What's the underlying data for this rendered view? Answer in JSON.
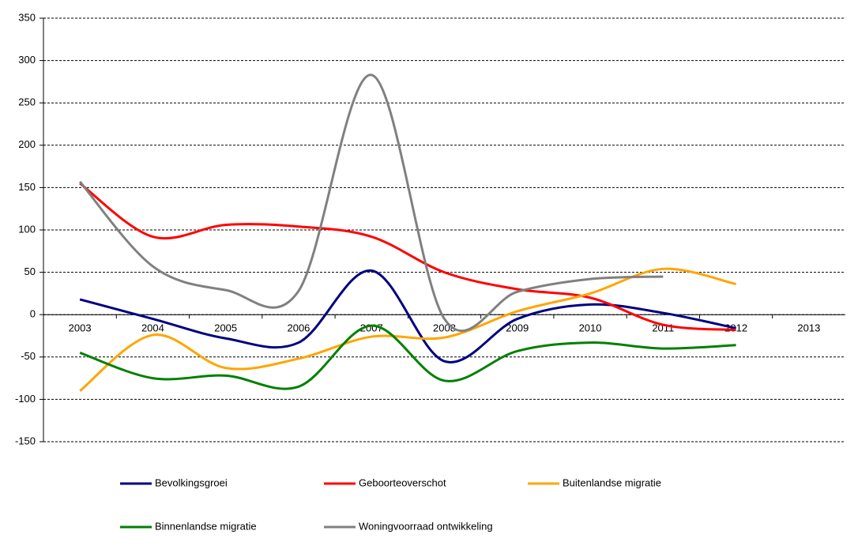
{
  "chart_data": {
    "type": "line",
    "categories": [
      "2003",
      "2004",
      "2005",
      "2006",
      "2007",
      "2008",
      "2009",
      "2010",
      "2011",
      "2012",
      "2013"
    ],
    "series": [
      {
        "name": "Bevolkingsgroei",
        "color": "#000080",
        "values": [
          18,
          -5,
          -28,
          -33,
          52,
          -55,
          -5,
          12,
          2,
          -16,
          null
        ]
      },
      {
        "name": "Geboorteoverschot",
        "color": "#ff0000",
        "values": [
          155,
          92,
          106,
          104,
          92,
          50,
          30,
          20,
          -12,
          -18,
          null
        ]
      },
      {
        "name": "Buitenlandse migratie",
        "color": "#ffa500",
        "values": [
          -90,
          -24,
          -63,
          -52,
          -26,
          -27,
          4,
          25,
          54,
          36,
          null
        ]
      },
      {
        "name": "Binnenlandse migratie",
        "color": "#008000",
        "values": [
          -45,
          -75,
          -72,
          -85,
          -13,
          -78,
          -43,
          -33,
          -40,
          -36,
          null
        ]
      },
      {
        "name": "Woningvoorraad ontwikkeling",
        "color": "#808080",
        "values": [
          157,
          57,
          29,
          28,
          283,
          -5,
          27,
          42,
          45,
          null,
          null
        ]
      }
    ],
    "ylim": [
      -150,
      350
    ],
    "yticks": [
      -150,
      -100,
      -50,
      0,
      50,
      100,
      150,
      200,
      250,
      300,
      350
    ],
    "grid": true,
    "smooth": true,
    "legend": "bottom"
  }
}
